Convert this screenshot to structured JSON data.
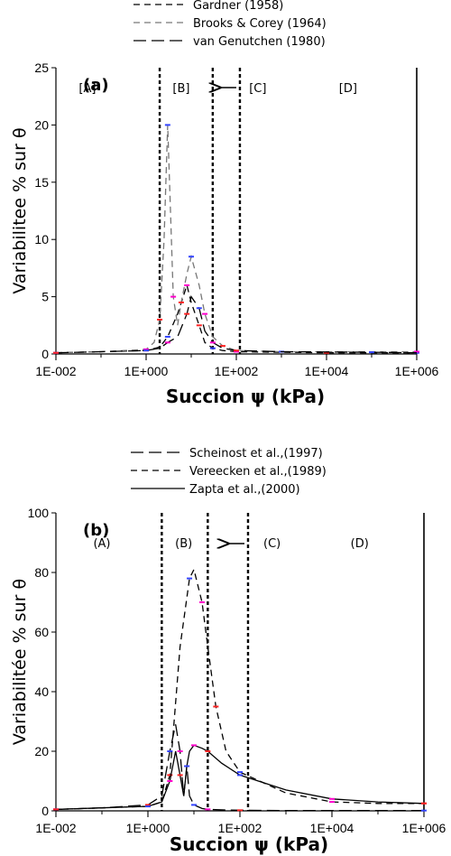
{
  "chart_data": [
    {
      "type": "line",
      "panel_label": "(a)",
      "xlabel": "Succion ψ (kPa)",
      "ylabel": "Variabilitee % sur θ",
      "xscale": "log",
      "xlim": [
        0.01,
        1000000
      ],
      "ylim": [
        0,
        25
      ],
      "xticks": [
        0.01,
        1,
        100,
        10000,
        1000000
      ],
      "xtick_labels": [
        "1E-002",
        "1E+000",
        "1E+002",
        "1E+004",
        "1E+006"
      ],
      "yticks": [
        0,
        5,
        10,
        15,
        20,
        25
      ],
      "ytick_labels": [
        "0",
        "5",
        "10",
        "15",
        "20",
        "25"
      ],
      "zones": [
        {
          "label": "[A]",
          "x": 0.05
        },
        {
          "label": "[B]",
          "x": 6
        },
        {
          "label": "[C]",
          "x": 300
        },
        {
          "label": "[D]",
          "x": 30000
        }
      ],
      "zone_bounds": [
        2,
        30,
        120,
        1000000
      ],
      "arrow_label": "←",
      "legend_position": "top",
      "series": [
        {
          "name": "Gardner (1958)",
          "style": "dashed",
          "color": "#000000",
          "x": [
            0.01,
            0.1,
            1,
            2,
            3,
            5,
            8,
            10,
            15,
            20,
            30,
            50,
            100,
            1000,
            10000,
            100000,
            1000000
          ],
          "y": [
            0.1,
            0.2,
            0.3,
            0.6,
            1.5,
            3.5,
            6.0,
            4.5,
            2.5,
            1.0,
            0.5,
            0.3,
            0.2,
            0.15,
            0.1,
            0.1,
            0.1
          ]
        },
        {
          "name": "Brooks & Corey (1964)",
          "style": "dashed",
          "color": "#777777",
          "x": [
            0.01,
            0.1,
            1,
            1.5,
            2,
            2.5,
            3,
            3.5,
            4,
            5,
            6,
            8,
            10,
            15,
            20,
            30,
            50,
            100,
            1000,
            100000,
            1000000
          ],
          "y": [
            0.1,
            0.2,
            0.4,
            1.0,
            3.0,
            10.0,
            20.0,
            12.0,
            5.0,
            2.5,
            4.5,
            7.0,
            8.5,
            6.0,
            3.5,
            1.5,
            0.7,
            0.3,
            0.2,
            0.2,
            0.2
          ]
        },
        {
          "name": "van Genutchen (1980)",
          "style": "longdash",
          "color": "#000000",
          "x": [
            0.01,
            0.1,
            1,
            2,
            3,
            5,
            8,
            10,
            15,
            20,
            30,
            50,
            100,
            1000,
            100000,
            1000000
          ],
          "y": [
            0.1,
            0.2,
            0.3,
            0.5,
            1.0,
            1.5,
            3.5,
            5.0,
            4.0,
            2.0,
            1.0,
            0.5,
            0.3,
            0.2,
            0.15,
            0.1
          ]
        }
      ]
    },
    {
      "type": "line",
      "panel_label": "(b)",
      "xlabel": "Succion ψ (kPa)",
      "ylabel": "Variabilitée % sur θ",
      "xscale": "log",
      "xlim": [
        0.01,
        1000000
      ],
      "ylim": [
        0,
        100
      ],
      "xticks": [
        0.01,
        1,
        100,
        10000,
        1000000
      ],
      "xtick_labels": [
        "1E-002",
        "1E+000",
        "1E+002",
        "1E+004",
        "1E+006"
      ],
      "yticks": [
        0,
        20,
        40,
        60,
        80,
        100
      ],
      "ytick_labels": [
        "0",
        "20",
        "40",
        "60",
        "80",
        "100"
      ],
      "zones": [
        {
          "label": "(A)",
          "x": 0.1
        },
        {
          "label": "(B)",
          "x": 6
        },
        {
          "label": "(C)",
          "x": 500
        },
        {
          "label": "(D)",
          "x": 40000
        }
      ],
      "zone_bounds": [
        2,
        20,
        150,
        1000000
      ],
      "arrow_label": "←",
      "legend_position": "top",
      "series": [
        {
          "name": "Scheinost et al.,(1997)",
          "style": "longdash",
          "color": "#000000",
          "x": [
            0.01,
            0.1,
            1,
            2,
            3,
            4,
            5,
            6,
            7,
            8,
            10,
            15,
            20,
            50,
            100,
            1000,
            1000000
          ],
          "y": [
            0.5,
            1,
            2,
            5,
            20,
            29,
            20,
            5,
            15,
            5,
            2,
            0.8,
            0.5,
            0.3,
            0.2,
            0.1,
            0.1
          ]
        },
        {
          "name": "Vereecken et al.,(1989)",
          "style": "dashed",
          "color": "#000000",
          "x": [
            0.01,
            0.1,
            1,
            2,
            3,
            5,
            8,
            10,
            15,
            20,
            30,
            50,
            100,
            1000,
            10000,
            100000,
            1000000
          ],
          "y": [
            0.5,
            1,
            1.5,
            3,
            12,
            55,
            78,
            81,
            70,
            55,
            35,
            20,
            13,
            6,
            3,
            2.5,
            2.5
          ]
        },
        {
          "name": "Zapta et al.,(2000)",
          "style": "solid",
          "color": "#000000",
          "x": [
            0.01,
            0.1,
            1,
            2,
            3,
            4,
            5,
            6,
            7,
            8,
            10,
            15,
            20,
            40,
            100,
            1000,
            10000,
            100000,
            1000000
          ],
          "y": [
            0.5,
            1,
            1.5,
            3,
            10,
            20,
            12,
            5,
            15,
            20,
            22,
            21,
            20,
            16,
            12,
            7,
            4,
            3,
            2.5
          ]
        }
      ]
    }
  ]
}
